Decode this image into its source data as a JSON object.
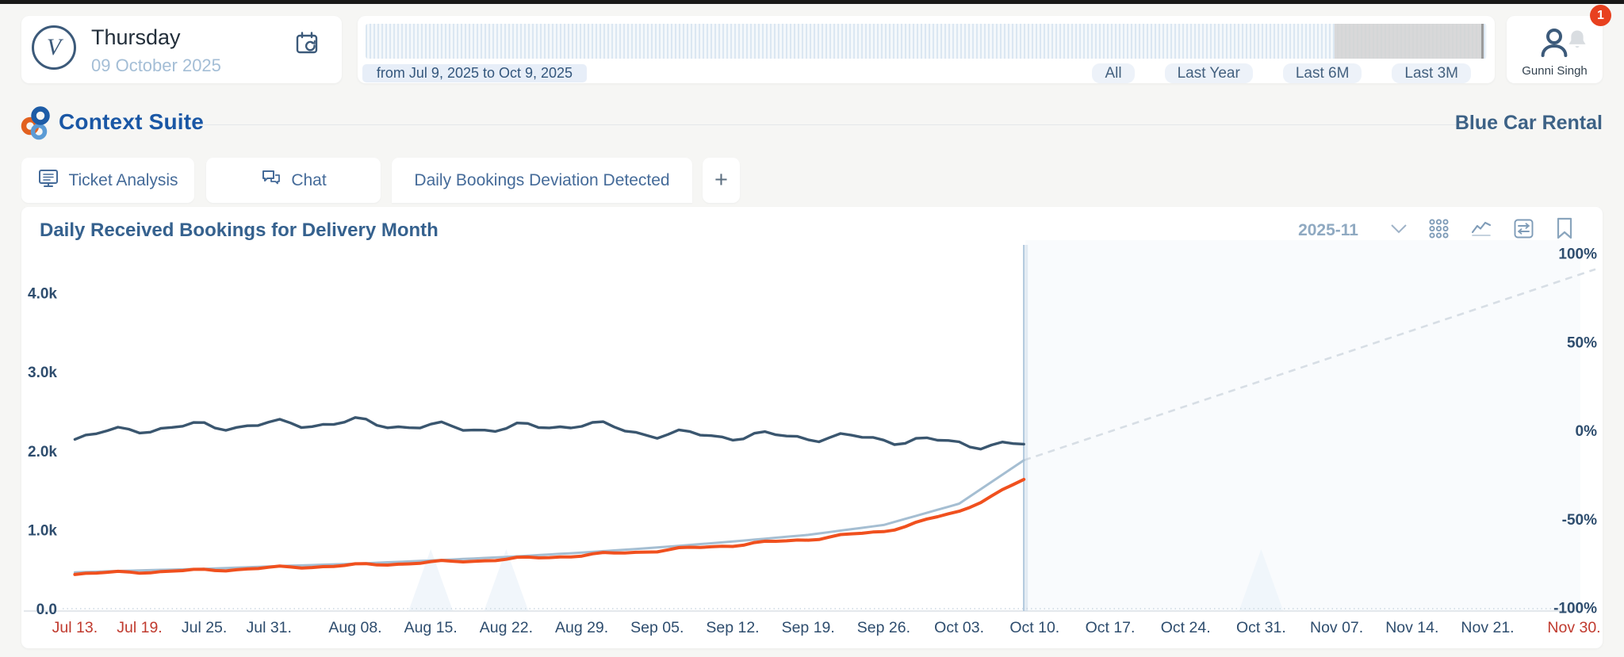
{
  "header": {
    "date_card": {
      "avatar_letter": "V",
      "weekday": "Thursday",
      "date": "09 October 2025"
    },
    "timeline": {
      "range_label": "from Jul 9, 2025 to Oct 9, 2025",
      "range_buttons": [
        "All",
        "Last Year",
        "Last 6M",
        "Last 3M"
      ]
    },
    "user": {
      "name": "Gunni Singh",
      "notification_count": "1"
    }
  },
  "brand": {
    "app_name": "Context Suite",
    "org_name": "Blue Car Rental"
  },
  "tabs": [
    {
      "label": "Ticket Analysis",
      "icon": "monitor-icon"
    },
    {
      "label": "Chat",
      "icon": "chat-icon"
    },
    {
      "label": "Daily Bookings Deviation Detected",
      "icon": null
    },
    {
      "label": "+",
      "icon": "plus-icon"
    }
  ],
  "chart_header": {
    "title": "Daily Received Bookings for Delivery Month",
    "month_selector": "2025-11"
  },
  "colors": {
    "navy_line": "#3a566f",
    "orange_line": "#f0501e",
    "gray_line": "#a5bed2",
    "projection": "#d7dee5",
    "marker": "#b5cbdf",
    "axis_text": "#2e4d6e",
    "red_label": "#c03a2e",
    "badge": "#e8411f",
    "logo_blue": "#1d5ca6",
    "logo_orange": "#e2611f",
    "logo_lightblue": "#5b9bd5"
  },
  "chart_data": {
    "type": "line",
    "title": "Daily Received Bookings for Delivery Month",
    "selected_delivery_month": "2025-11",
    "x_start_date": "Jul 9, 2025",
    "x_tick_labels": [
      "Jul 13.",
      "Jul 19.",
      "Jul 25.",
      "Jul 31.",
      "Aug 08.",
      "Aug 15.",
      "Aug 22.",
      "Aug 29.",
      "Sep 05.",
      "Sep 12.",
      "Sep 19.",
      "Sep 26.",
      "Oct 03.",
      "Oct 10.",
      "Oct 17.",
      "Oct 24.",
      "Oct 31.",
      "Nov 07.",
      "Nov 14.",
      "Nov 21.",
      "Nov 30."
    ],
    "x_tick_days": [
      4,
      10,
      16,
      22,
      30,
      37,
      44,
      51,
      58,
      65,
      72,
      79,
      86,
      93,
      100,
      107,
      114,
      121,
      128,
      135,
      144
    ],
    "x_tick_red": [
      true,
      true,
      false,
      false,
      false,
      false,
      false,
      false,
      false,
      false,
      false,
      false,
      false,
      false,
      false,
      false,
      false,
      false,
      false,
      false,
      true
    ],
    "left_axis": {
      "tick_labels": [
        "0.0",
        "1.0k",
        "2.0k",
        "3.0k",
        "4.0k"
      ],
      "tick_values": [
        0,
        1000,
        2000,
        3000,
        4000
      ],
      "max": 4000
    },
    "right_axis": {
      "tick_labels": [
        "100%",
        "50%",
        "0%",
        "-50%",
        "-100%"
      ],
      "tick_values": [
        100,
        50,
        0,
        -50,
        -100
      ]
    },
    "today_marker_day": 92,
    "series": [
      {
        "name": "navy",
        "color": "#3a566f",
        "width": 3.4,
        "wiggle": 1,
        "days": [
          4,
          10,
          16,
          22,
          30,
          37,
          44,
          51,
          58,
          65,
          72,
          79,
          86,
          92
        ],
        "values": [
          2170,
          2280,
          2310,
          2330,
          2360,
          2300,
          2280,
          2340,
          2210,
          2190,
          2180,
          2150,
          2100,
          2060
        ]
      },
      {
        "name": "gray",
        "color": "#a5bed2",
        "width": 3,
        "wiggle": 0,
        "days": [
          4,
          10,
          16,
          22,
          30,
          37,
          44,
          51,
          58,
          65,
          72,
          79,
          86,
          92
        ],
        "values": [
          460,
          485,
          505,
          535,
          570,
          610,
          655,
          710,
          775,
          850,
          935,
          1060,
          1330,
          1880
        ]
      },
      {
        "name": "orange",
        "color": "#f0501e",
        "width": 4,
        "wiggle": 0.3,
        "days": [
          4,
          10,
          16,
          22,
          30,
          37,
          44,
          51,
          58,
          65,
          72,
          79,
          86,
          92
        ],
        "values": [
          440,
          465,
          485,
          515,
          550,
          585,
          625,
          675,
          735,
          805,
          880,
          980,
          1230,
          1630
        ]
      }
    ],
    "projection": {
      "style": "dashed",
      "color": "#d7dee5",
      "start_day": 92,
      "start_value": 1880,
      "end_day": 145,
      "end_value": 4300
    },
    "weekend_markers": [
      {
        "peak_day": 37
      },
      {
        "peak_day": 44
      },
      {
        "peak_day": 114
      }
    ],
    "grid": "zero-line-only",
    "legend": "none"
  }
}
